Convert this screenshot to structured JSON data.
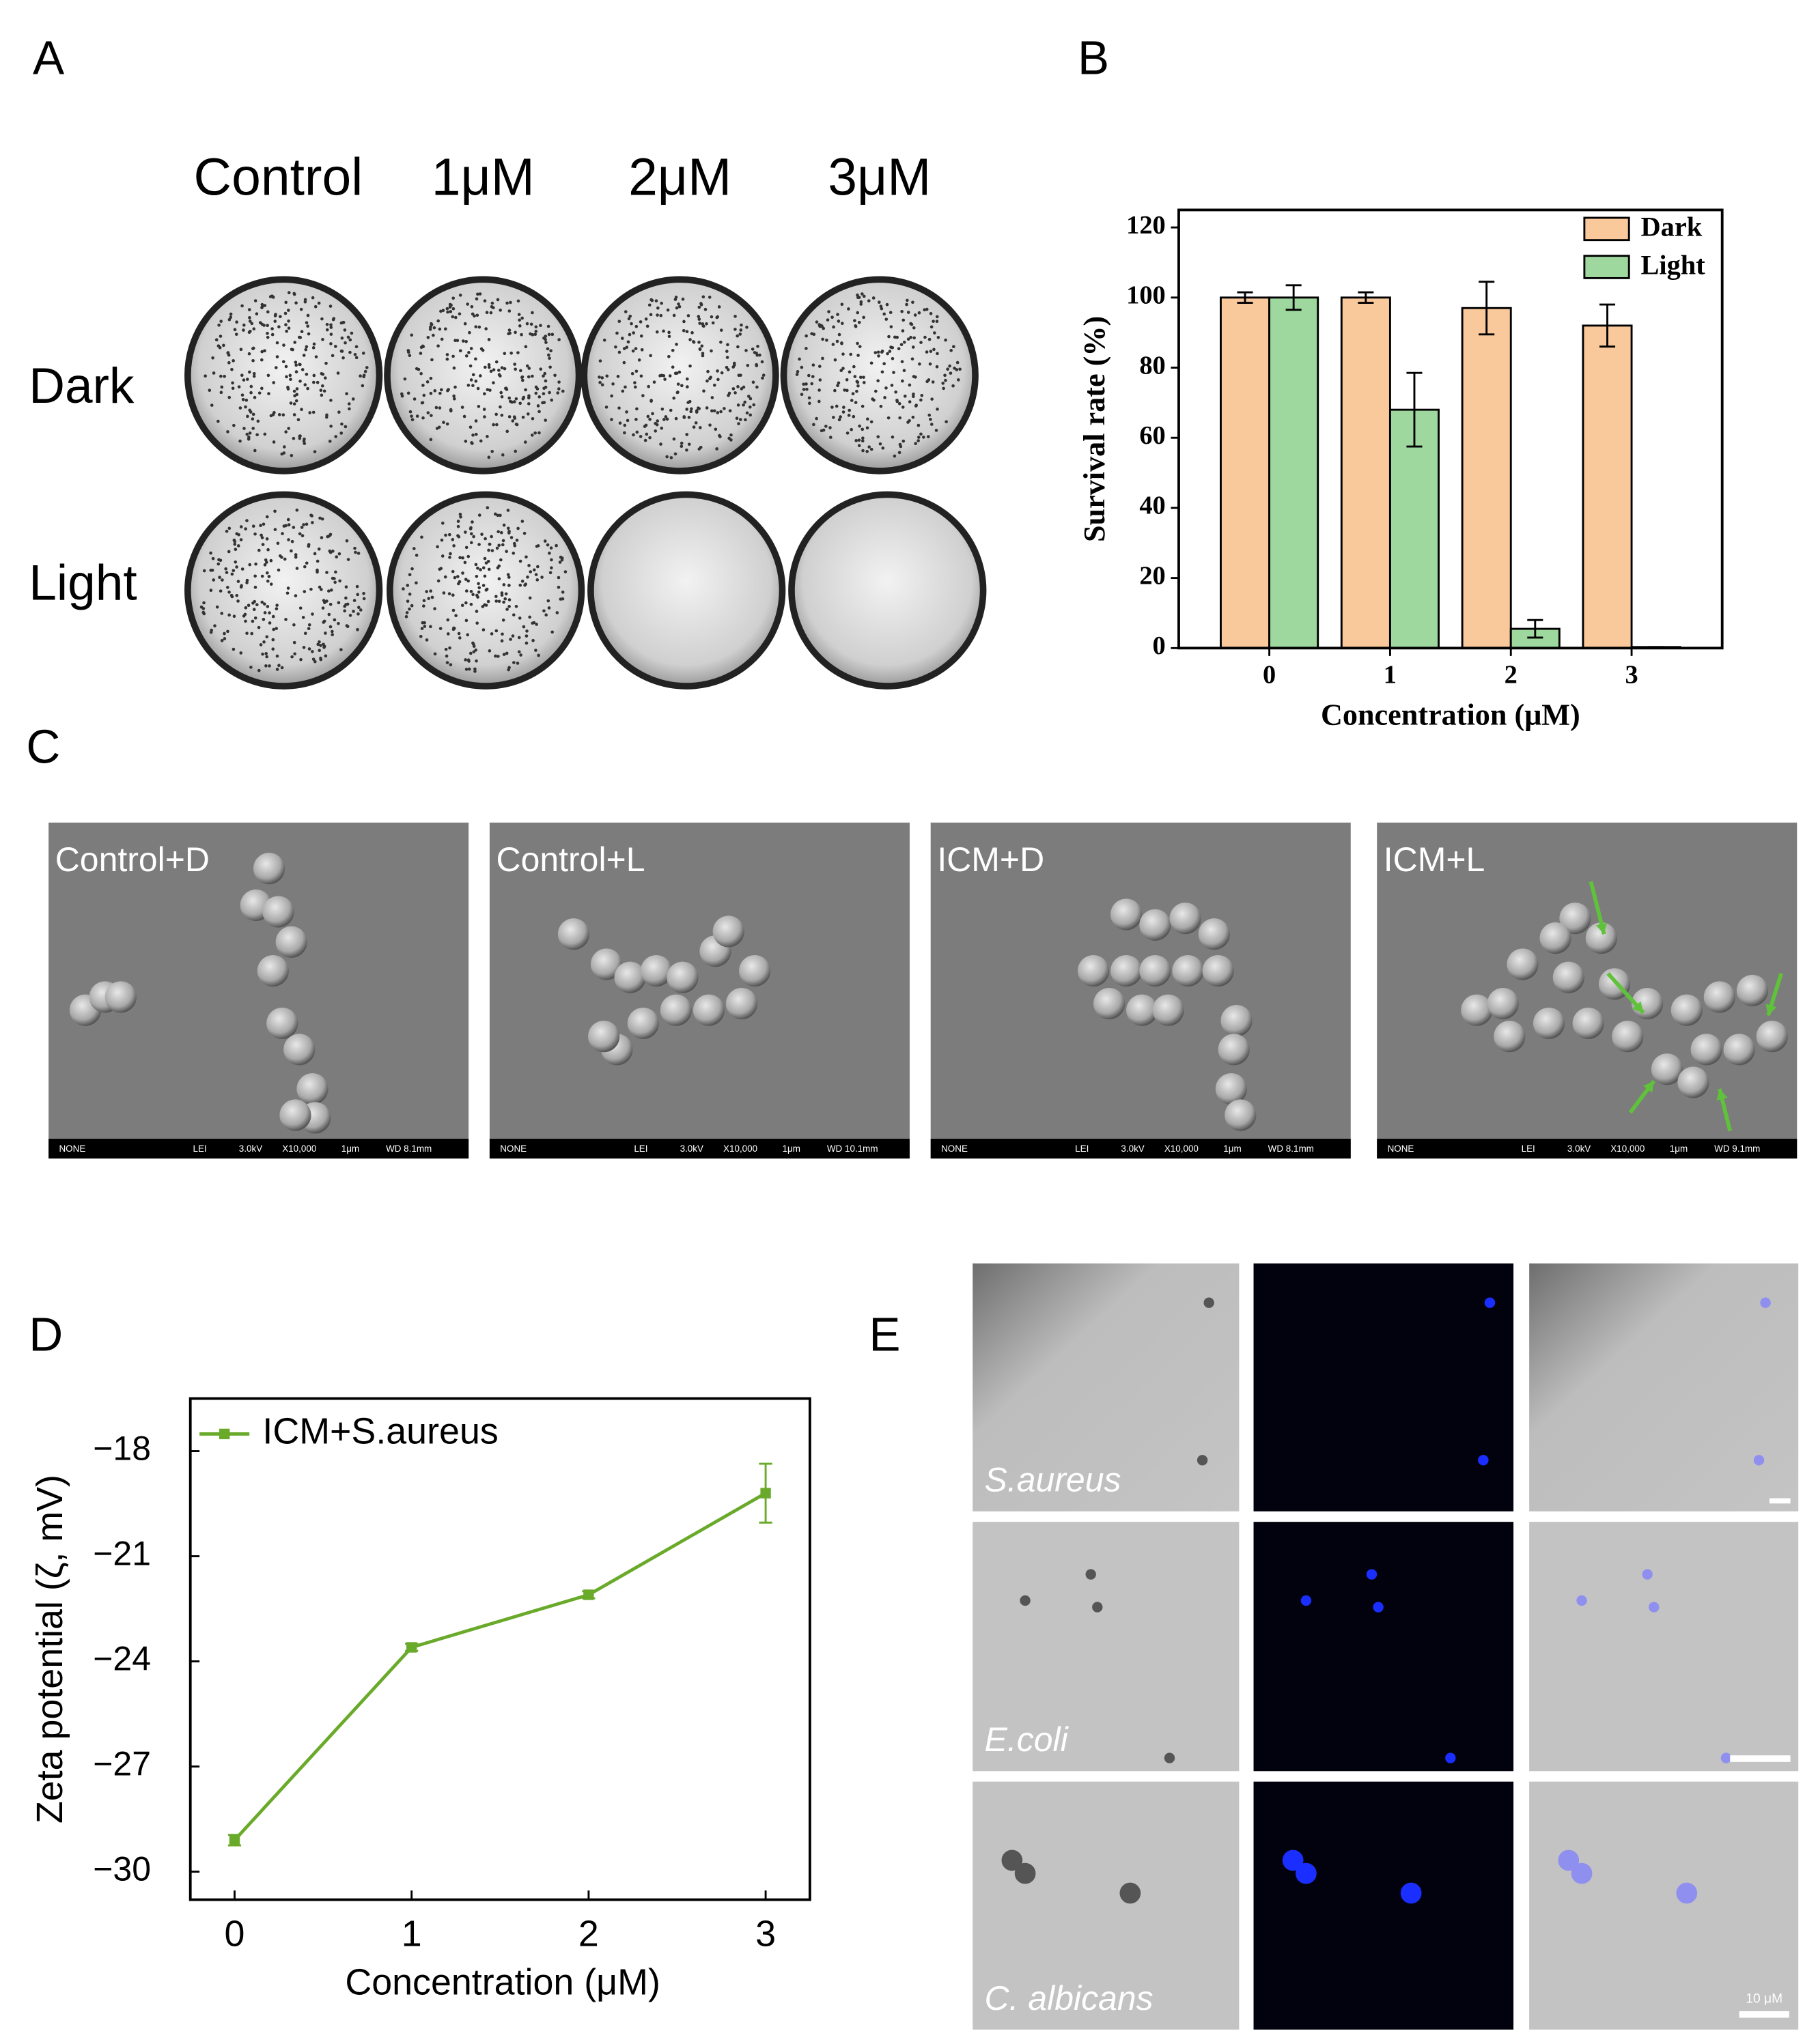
{
  "panel_labels": [
    "A",
    "B",
    "C",
    "D",
    "E"
  ],
  "panel_a": {
    "columns": [
      "Control",
      "1μM",
      "2μM",
      "3μM"
    ],
    "rows": [
      "Dark",
      "Light"
    ]
  },
  "panel_c": {
    "labels": [
      "Control+D",
      "Control+L",
      "ICM+D",
      "ICM+L"
    ],
    "footers": [
      [
        "NONE",
        "LEI",
        "3.0kV",
        "X10,000",
        "1μm",
        "WD 8.1mm"
      ],
      [
        "NONE",
        "LEI",
        "3.0kV",
        "X10,000",
        "1μm",
        "WD 10.1mm"
      ],
      [
        "NONE",
        "LEI",
        "3.0kV",
        "X10,000",
        "1μm",
        "WD 8.1mm"
      ],
      [
        "NONE",
        "LEI",
        "3.0kV",
        "X10,000",
        "1μm",
        "WD 9.1mm"
      ]
    ]
  },
  "panel_e": {
    "labels": [
      "S.aureus",
      "E.coli",
      "C. albicans"
    ],
    "scale_label": "10 μM"
  },
  "chart_data": [
    {
      "type": "bar",
      "xlabel": "Concentration (μM)",
      "ylabel": "Survival rate (%)",
      "categories": [
        "0",
        "1",
        "2",
        "3"
      ],
      "ylim": [
        0,
        125
      ],
      "yticks": [
        0,
        20,
        40,
        60,
        80,
        100,
        120
      ],
      "legend": "upper right",
      "series": [
        {
          "name": "Dark",
          "color": "#f9c89b",
          "values": [
            100,
            100,
            97,
            92
          ],
          "errors": [
            1.5,
            1.5,
            7.5,
            6
          ]
        },
        {
          "name": "Light",
          "color": "#9ed89e",
          "values": [
            100,
            68,
            5.5,
            0.3
          ],
          "errors": [
            3.5,
            10.5,
            2.5,
            0
          ]
        }
      ]
    },
    {
      "type": "line",
      "xlabel": "Concentration (μM)",
      "ylabel": "Zeta potential (ζ, mV)",
      "x": [
        0,
        1,
        2,
        3
      ],
      "xlim": [
        -0.25,
        3.25
      ],
      "xticks": [
        0,
        1,
        2,
        3
      ],
      "ylim": [
        -30.8,
        -16.5
      ],
      "yticks": [
        {
          "value": -30,
          "label": "−30"
        },
        {
          "value": -27,
          "label": "−27"
        },
        {
          "value": -24,
          "label": "−24"
        },
        {
          "value": -21,
          "label": "−21"
        },
        {
          "value": -18,
          "label": "−18"
        }
      ],
      "legend": "upper left",
      "series": [
        {
          "name": "ICM+S.aureus",
          "color": "#6aaa2a",
          "values": [
            -29.1,
            -23.6,
            -22.1,
            -19.2
          ],
          "errors": [
            0.15,
            0.1,
            0.1,
            0.84
          ]
        }
      ]
    }
  ]
}
